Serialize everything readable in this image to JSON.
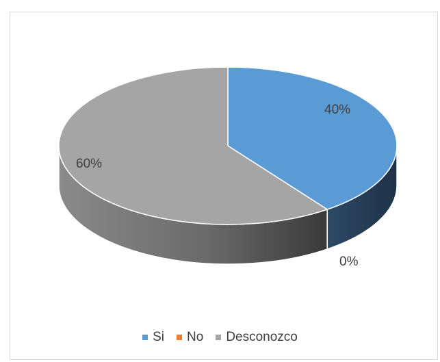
{
  "chart_data": {
    "type": "pie",
    "title": "",
    "categories": [
      "Si",
      "No",
      "Desconozco"
    ],
    "values": [
      40,
      0,
      60
    ],
    "data_labels": [
      "40%",
      "0%",
      "60%"
    ],
    "colors": [
      "#5b9bd5",
      "#ed7d31",
      "#a5a5a5"
    ],
    "legend_position": "bottom",
    "style": "3d-pie"
  }
}
